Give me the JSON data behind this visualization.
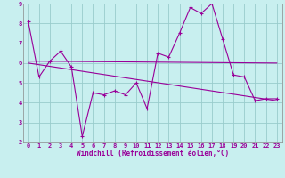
{
  "xlabel": "Windchill (Refroidissement éolien,°C)",
  "bg_color": "#c8efef",
  "line_color": "#990099",
  "grid_color": "#99cccc",
  "xlim": [
    -0.5,
    23.5
  ],
  "ylim": [
    2,
    9
  ],
  "xticks": [
    0,
    1,
    2,
    3,
    4,
    5,
    6,
    7,
    8,
    9,
    10,
    11,
    12,
    13,
    14,
    15,
    16,
    17,
    18,
    19,
    20,
    21,
    22,
    23
  ],
  "yticks": [
    2,
    3,
    4,
    5,
    6,
    7,
    8,
    9
  ],
  "data_x": [
    0,
    1,
    2,
    3,
    4,
    5,
    6,
    7,
    8,
    9,
    10,
    11,
    12,
    13,
    14,
    15,
    16,
    17,
    18,
    19,
    20,
    21,
    22,
    23
  ],
  "data_y": [
    8.1,
    5.3,
    6.1,
    6.6,
    5.8,
    2.3,
    4.5,
    4.4,
    4.6,
    4.4,
    5.0,
    3.7,
    6.5,
    6.3,
    7.5,
    8.8,
    8.5,
    9.0,
    7.2,
    5.4,
    5.3,
    4.1,
    4.2,
    4.2
  ],
  "trend1_x": [
    0,
    23
  ],
  "trend1_y": [
    6.1,
    6.0
  ],
  "trend2_x": [
    0,
    23
  ],
  "trend2_y": [
    6.0,
    4.1
  ],
  "tick_fontsize": 5.0,
  "xlabel_fontsize": 5.5,
  "spine_color": "#888888"
}
